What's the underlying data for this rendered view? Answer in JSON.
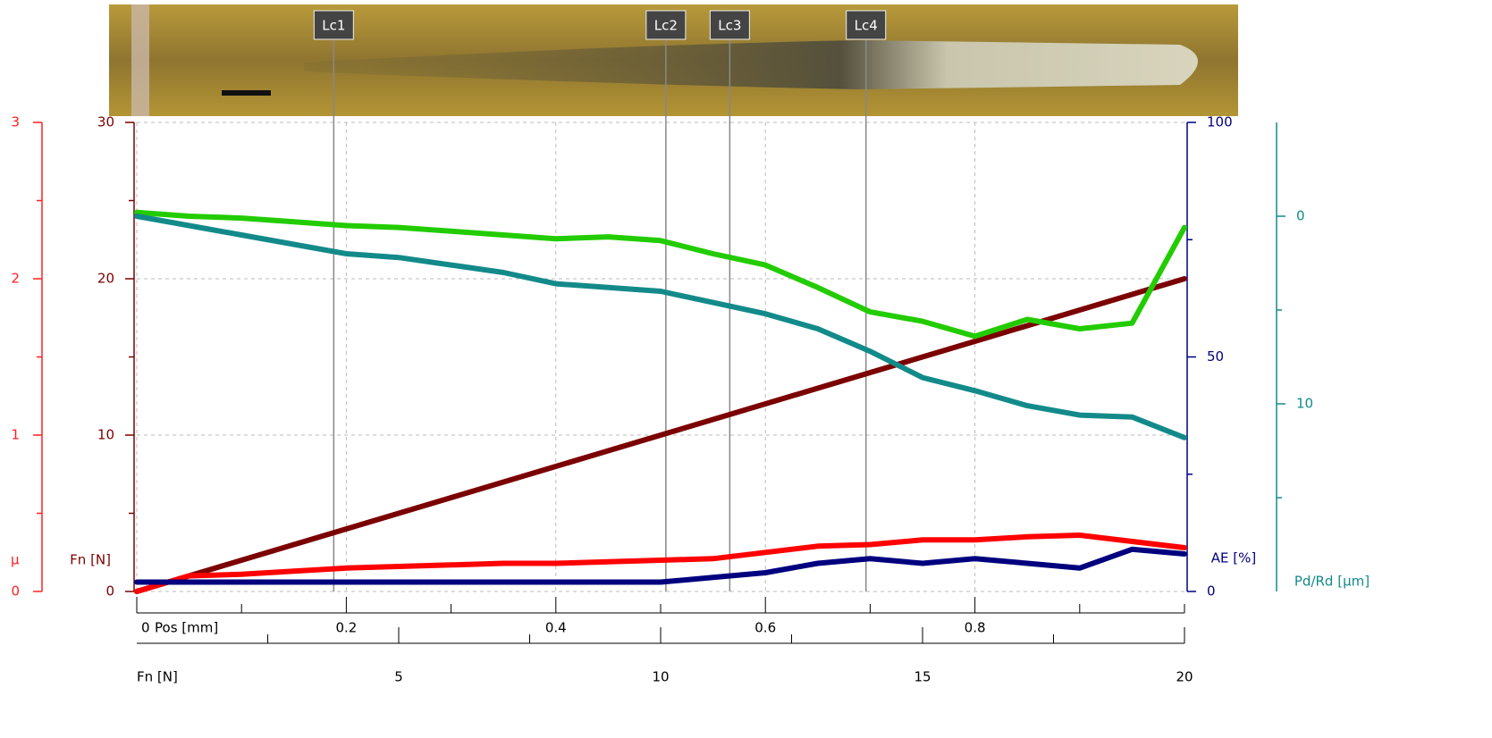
{
  "chart_data": {
    "type": "line",
    "x": [
      0,
      0.05,
      0.1,
      0.15,
      0.2,
      0.25,
      0.3,
      0.35,
      0.4,
      0.45,
      0.5,
      0.55,
      0.6,
      0.65,
      0.7,
      0.75,
      0.8,
      0.85,
      0.9,
      0.95,
      1.0
    ],
    "xlim": [
      0,
      1
    ],
    "xticks": [
      0,
      0.2,
      0.4,
      0.6,
      0.8
    ],
    "xminor_ticks": [
      0.1,
      0.3,
      0.5,
      0.7,
      0.9,
      1.0
    ],
    "xlabel": "Pos [mm]",
    "x2lim": [
      0,
      20
    ],
    "x2ticks": [
      5,
      10,
      15,
      20
    ],
    "x2minor_ticks": [
      2.5,
      7.5,
      12.5,
      17.5
    ],
    "x2label": "Fn [N]",
    "grid": true,
    "axes": {
      "mu": {
        "label": "μ",
        "color": "#ff2020",
        "lim": [
          0,
          3
        ],
        "ticks": [
          0,
          1,
          2,
          3
        ],
        "minor_ticks": [
          0.5,
          1.5,
          2.5
        ]
      },
      "fn": {
        "label": "Fn [N]",
        "color": "#7b0000",
        "lim": [
          0,
          30
        ],
        "ticks": [
          0,
          10,
          20,
          30
        ],
        "minor_ticks": [
          5,
          15,
          25
        ]
      },
      "ae": {
        "label": "AE [%]",
        "color": "#00007f",
        "lim": [
          0,
          100
        ],
        "ticks": [
          0,
          50,
          100
        ],
        "minor_ticks": [
          25,
          75
        ]
      },
      "pd": {
        "label": "Pd/Rd [µm]",
        "color": "#138a8a",
        "lim": [
          20,
          -5
        ],
        "ticks": [
          0,
          10
        ],
        "minor_ticks": [
          5,
          15
        ]
      }
    },
    "series": [
      {
        "axis": "fn",
        "color": "#7b0000",
        "values": [
          0,
          1,
          2,
          3,
          4,
          5,
          6,
          7,
          8,
          9,
          10,
          11,
          12,
          13,
          14,
          15,
          16,
          17,
          18,
          19,
          20
        ]
      },
      {
        "axis": "mu",
        "color": "#ff0000",
        "values": [
          0,
          0.1,
          0.11,
          0.13,
          0.15,
          0.16,
          0.17,
          0.18,
          0.18,
          0.19,
          0.2,
          0.21,
          0.25,
          0.29,
          0.3,
          0.33,
          0.33,
          0.35,
          0.36,
          0.32,
          0.28
        ]
      },
      {
        "axis": "ae",
        "color": "#00007f",
        "values": [
          2,
          2,
          2,
          2,
          2,
          2,
          2,
          2,
          2,
          2,
          2,
          3,
          4,
          6,
          7,
          6,
          7,
          6,
          5,
          9,
          8
        ]
      },
      {
        "axis": "pd",
        "color": "#22cc00",
        "values": [
          -0.2,
          0,
          0.1,
          0.3,
          0.5,
          0.6,
          0.8,
          1.0,
          1.2,
          1.1,
          1.3,
          2.0,
          2.6,
          3.8,
          5.1,
          5.6,
          6.4,
          5.5,
          6.0,
          5.7,
          0.6
        ]
      },
      {
        "axis": "pd",
        "color": "#138a8a",
        "values": [
          0,
          0.5,
          1.0,
          1.5,
          2.0,
          2.2,
          2.6,
          3.0,
          3.6,
          3.8,
          4.0,
          4.6,
          5.2,
          6.0,
          7.2,
          8.6,
          9.3,
          10.1,
          10.6,
          10.7,
          11.8
        ]
      }
    ],
    "critical_loads": [
      {
        "label": "Lc1",
        "pos": 0.188
      },
      {
        "label": "Lc2",
        "pos": 0.505
      },
      {
        "label": "Lc3",
        "pos": 0.566
      },
      {
        "label": "Lc4",
        "pos": 0.696
      }
    ]
  }
}
